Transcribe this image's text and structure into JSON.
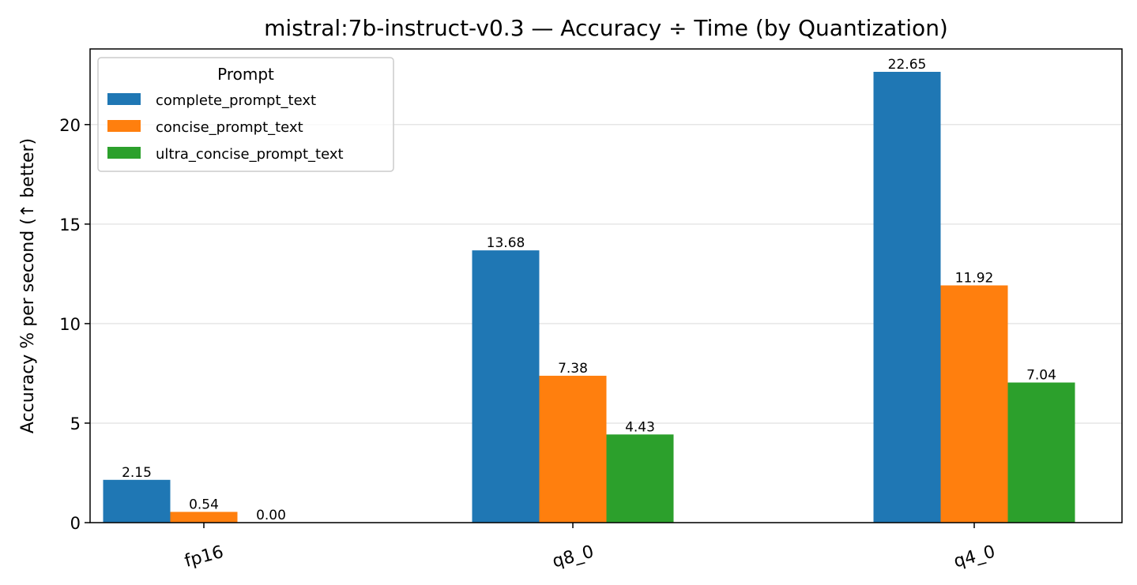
{
  "chart_data": {
    "type": "bar",
    "title": "mistral:7b-instruct-v0.3 — Accuracy ÷ Time (by Quantization)",
    "xlabel": "",
    "ylabel": "Accuracy % per second (↑ better)",
    "categories": [
      "fp16",
      "q8_0",
      "q4_0"
    ],
    "ylim": [
      0,
      23.8
    ],
    "yticks": [
      0,
      5,
      10,
      15,
      20
    ],
    "grid": "horizontal",
    "legend": {
      "title": "Prompt",
      "placement": "top-left"
    },
    "series": [
      {
        "name": "complete_prompt_text",
        "color": "#1f77b4",
        "values": [
          2.15,
          13.68,
          22.65
        ],
        "labels": [
          "2.15",
          "13.68",
          "22.65"
        ]
      },
      {
        "name": "concise_prompt_text",
        "color": "#ff7f0e",
        "values": [
          0.54,
          7.38,
          11.92
        ],
        "labels": [
          "0.54",
          "7.38",
          "11.92"
        ]
      },
      {
        "name": "ultra_concise_prompt_text",
        "color": "#2ca02c",
        "values": [
          0.0,
          4.43,
          7.04
        ],
        "labels": [
          "0.00",
          "4.43",
          "7.04"
        ]
      }
    ]
  }
}
